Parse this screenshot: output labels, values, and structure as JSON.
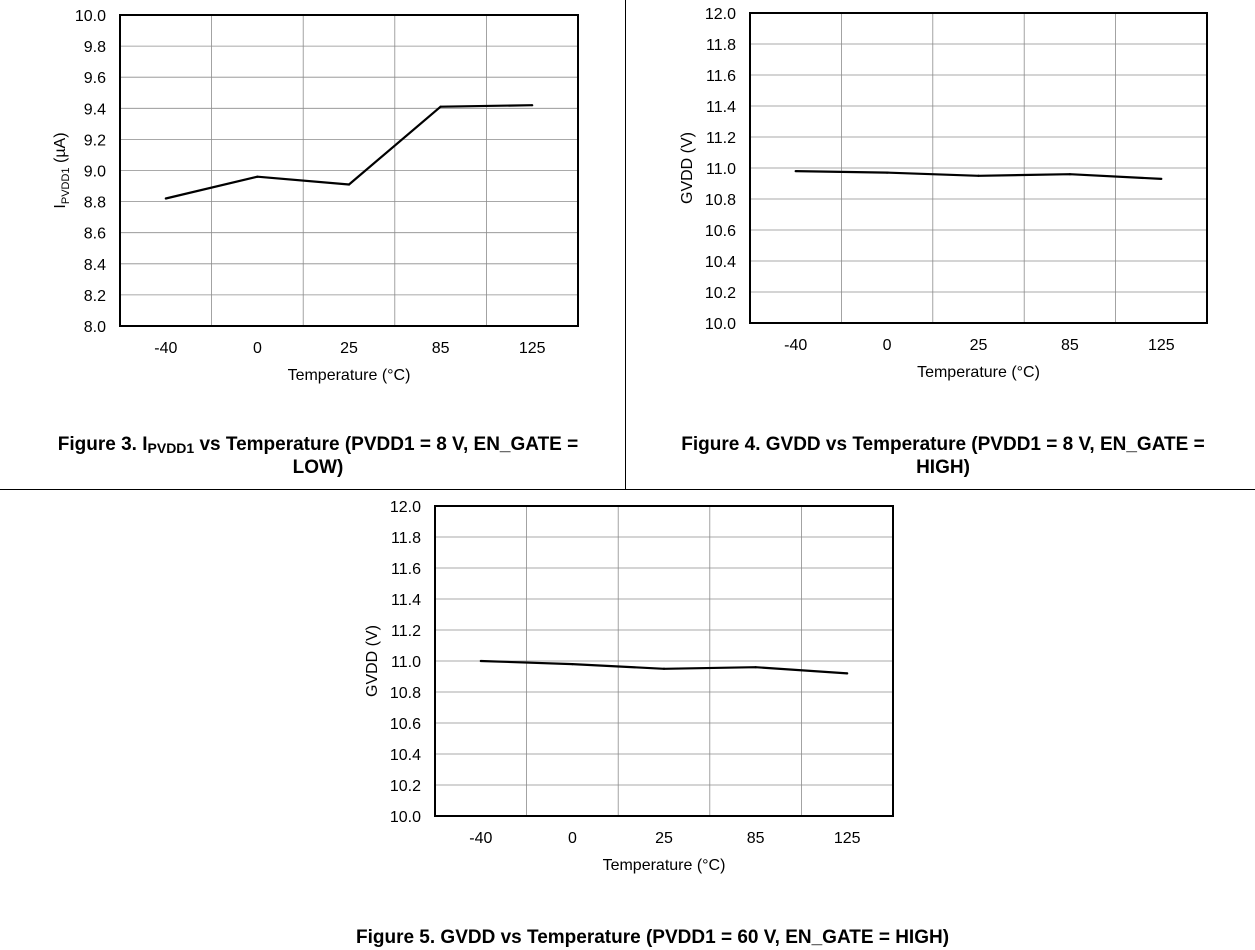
{
  "charts": [
    {
      "ylabel_main": "I",
      "ylabel_sub": "PVDD1",
      "ylabel_unit": " (µA)",
      "caption": {
        "prefix": "Figure 3. I",
        "sub": "PVDD1",
        "rest": " vs Temperature (PVDD1 = 8 V, EN_GATE =",
        "line2": "LOW)"
      }
    },
    {
      "ylabel_main": "GVDD (V)",
      "caption": {
        "line1": "Figure 4. GVDD vs Temperature (PVDD1 = 8 V, EN_GATE =",
        "line2": "HIGH)"
      }
    },
    {
      "ylabel_main": "GVDD (V)",
      "caption": {
        "line1": "Figure 5. GVDD vs Temperature (PVDD1 = 60 V, EN_GATE = HIGH)"
      }
    }
  ],
  "chart_data": [
    {
      "type": "line",
      "title": "Figure 3. IPVDD1 vs Temperature (PVDD1 = 8 V, EN_GATE = LOW)",
      "xlabel": "Temperature (°C)",
      "ylabel": "IPVDD1 (µA)",
      "categories": [
        "-40",
        "0",
        "25",
        "85",
        "125"
      ],
      "values": [
        8.82,
        8.96,
        8.91,
        9.41,
        9.42
      ],
      "ylim": [
        8.0,
        10.0
      ],
      "yticks": [
        "8.0",
        "8.2",
        "8.4",
        "8.6",
        "8.8",
        "9.0",
        "9.2",
        "9.4",
        "9.6",
        "9.8",
        "10.0"
      ],
      "grid": true
    },
    {
      "type": "line",
      "title": "Figure 4. GVDD vs Temperature (PVDD1 = 8 V, EN_GATE = HIGH)",
      "xlabel": "Temperature (°C)",
      "ylabel": "GVDD (V)",
      "categories": [
        "-40",
        "0",
        "25",
        "85",
        "125"
      ],
      "values": [
        10.98,
        10.97,
        10.95,
        10.96,
        10.93
      ],
      "ylim": [
        10.0,
        12.0
      ],
      "yticks": [
        "10.0",
        "10.2",
        "10.4",
        "10.6",
        "10.8",
        "11.0",
        "11.2",
        "11.4",
        "11.6",
        "11.8",
        "12.0"
      ],
      "grid": true
    },
    {
      "type": "line",
      "title": "Figure 5. GVDD vs Temperature (PVDD1 = 60 V, EN_GATE = HIGH)",
      "xlabel": "Temperature (°C)",
      "ylabel": "GVDD (V)",
      "categories": [
        "-40",
        "0",
        "25",
        "85",
        "125"
      ],
      "values": [
        11.0,
        10.98,
        10.95,
        10.96,
        10.92
      ],
      "ylim": [
        10.0,
        12.0
      ],
      "yticks": [
        "10.0",
        "10.2",
        "10.4",
        "10.6",
        "10.8",
        "11.0",
        "11.2",
        "11.4",
        "11.6",
        "11.8",
        "12.0"
      ],
      "grid": true
    }
  ]
}
